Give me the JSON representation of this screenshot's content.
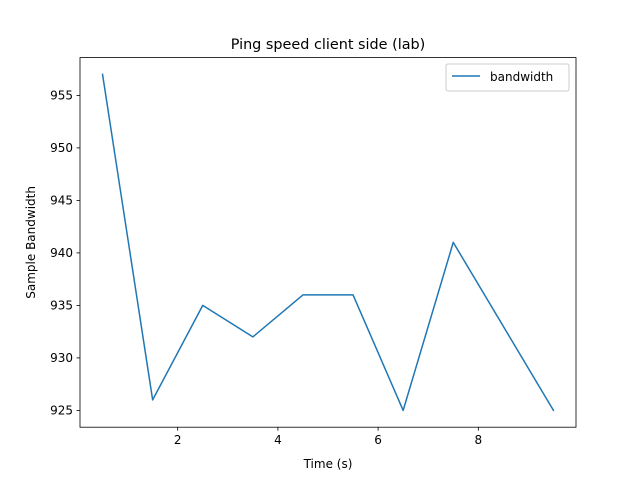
{
  "chart_data": {
    "type": "line",
    "title": "Ping speed client side (lab)",
    "xlabel": "Time (s)",
    "ylabel": "Sample Bandwidth",
    "xlim": [
      0.05,
      9.95
    ],
    "ylim": [
      923.4,
      958.6
    ],
    "xticks": [
      2,
      4,
      6,
      8
    ],
    "yticks": [
      925,
      930,
      935,
      940,
      945,
      950,
      955
    ],
    "grid": false,
    "legend_position": "top-right",
    "series": [
      {
        "name": "bandwidth",
        "color": "#1f77b4",
        "x": [
          0.5,
          1.5,
          2.5,
          3.5,
          4.5,
          5.5,
          6.5,
          7.5,
          8.5,
          9.5
        ],
        "y": [
          957,
          926,
          935,
          932,
          936,
          936,
          925,
          941,
          933,
          925
        ]
      }
    ]
  }
}
